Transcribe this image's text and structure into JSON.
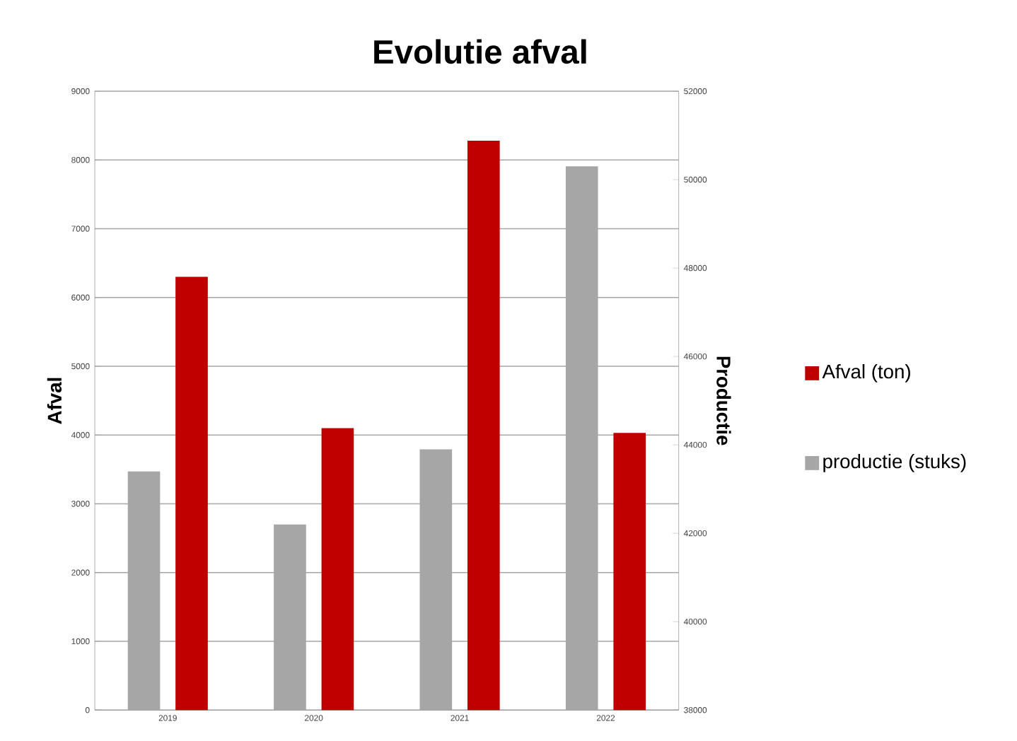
{
  "chart_data": {
    "type": "bar",
    "title": "Evolutie afval",
    "categories": [
      "2019",
      "2020",
      "2021",
      "2022"
    ],
    "ylabel": "Afval",
    "y2label": "Productie",
    "series": [
      {
        "name": "productie (stuks)",
        "color": "#a6a6a6",
        "axis": "y2",
        "values": [
          43400,
          42200,
          43900,
          50300
        ]
      },
      {
        "name": "Afval (ton)",
        "color": "#c00000",
        "values": [
          6300,
          4100,
          8280,
          4030
        ]
      }
    ],
    "ylim": [
      0,
      9000
    ],
    "yticks": [
      0,
      1000,
      2000,
      3000,
      4000,
      5000,
      6000,
      7000,
      8000,
      9000
    ],
    "y2lim": [
      38000,
      52000
    ],
    "y2ticks": [
      38000,
      40000,
      42000,
      44000,
      46000,
      48000,
      50000,
      52000
    ],
    "grid": "y",
    "legend": "right"
  }
}
